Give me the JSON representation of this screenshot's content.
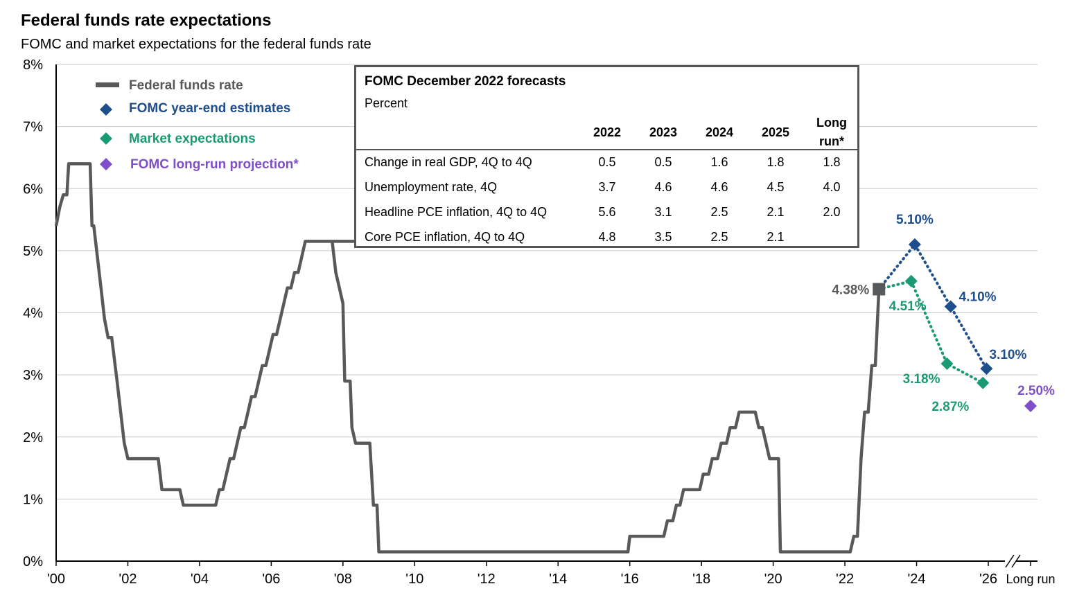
{
  "title": "Federal funds rate expectations",
  "subtitle": "FOMC and market expectations for the federal funds rate",
  "legend": [
    {
      "label": "Federal funds rate",
      "color": "#58595b",
      "symbol": "line"
    },
    {
      "label": "FOMC  year-end estimates",
      "color": "#1f4e8c",
      "symbol": "diamond"
    },
    {
      "label": "Market expectations",
      "color": "#1a9a72",
      "symbol": "diamond"
    },
    {
      "label": "FOMC  long-run  projection*",
      "color": "#7f4fc9",
      "symbol": "diamond"
    }
  ],
  "forecast_table": {
    "title": "FOMC December 2022 forecasts",
    "subtitle": "Percent",
    "columns": [
      "2022",
      "2023",
      "2024",
      "2025",
      "Long",
      "run*"
    ],
    "rows": [
      {
        "label": "Change in real GDP, 4Q to 4Q",
        "values": [
          "0.5",
          "0.5",
          "1.6",
          "1.8",
          "1.8"
        ]
      },
      {
        "label": "Unemployment rate, 4Q",
        "values": [
          "3.7",
          "4.6",
          "4.6",
          "4.5",
          "4.0"
        ]
      },
      {
        "label": "Headline PCE inflation, 4Q to 4Q",
        "values": [
          "5.6",
          "3.1",
          "2.5",
          "2.1",
          "2.0"
        ]
      },
      {
        "label": "Core PCE inflation, 4Q to 4Q",
        "values": [
          "4.8",
          "3.5",
          "2.5",
          "2.1",
          ""
        ]
      }
    ]
  },
  "chart_data": {
    "type": "line",
    "ylim": [
      0,
      8
    ],
    "xlim": [
      2000,
      2026
    ],
    "y_ticks": [
      "0%",
      "1%",
      "2%",
      "3%",
      "4%",
      "5%",
      "6%",
      "7%",
      "8%"
    ],
    "x_ticks": [
      {
        "year": 2000,
        "label": "'00"
      },
      {
        "year": 2002,
        "label": "'02"
      },
      {
        "year": 2004,
        "label": "'04"
      },
      {
        "year": 2006,
        "label": "'06"
      },
      {
        "year": 2008,
        "label": "'08"
      },
      {
        "year": 2010,
        "label": "'10"
      },
      {
        "year": 2012,
        "label": "'12"
      },
      {
        "year": 2014,
        "label": "'14"
      },
      {
        "year": 2016,
        "label": "'16"
      },
      {
        "year": 2018,
        "label": "'18"
      },
      {
        "year": 2020,
        "label": "'20"
      },
      {
        "year": 2022,
        "label": "'22"
      },
      {
        "year": 2024,
        "label": "'24"
      },
      {
        "year": 2026,
        "label": "'26"
      }
    ],
    "long_run_label": "Long run",
    "grid": true,
    "series": [
      {
        "name": "Federal funds rate",
        "color": "#58595b",
        "points": [
          [
            2000.0,
            5.4
          ],
          [
            2000.1,
            5.7
          ],
          [
            2000.2,
            5.9
          ],
          [
            2000.3,
            5.9
          ],
          [
            2000.35,
            6.4
          ],
          [
            2000.95,
            6.4
          ],
          [
            2001.0,
            5.4
          ],
          [
            2001.05,
            5.4
          ],
          [
            2001.15,
            4.9
          ],
          [
            2001.25,
            4.4
          ],
          [
            2001.35,
            3.9
          ],
          [
            2001.45,
            3.6
          ],
          [
            2001.55,
            3.6
          ],
          [
            2001.7,
            2.9
          ],
          [
            2001.8,
            2.4
          ],
          [
            2001.9,
            1.9
          ],
          [
            2002.0,
            1.65
          ],
          [
            2002.85,
            1.65
          ],
          [
            2002.95,
            1.15
          ],
          [
            2003.45,
            1.15
          ],
          [
            2003.55,
            0.9
          ],
          [
            2004.45,
            0.9
          ],
          [
            2004.55,
            1.15
          ],
          [
            2004.65,
            1.15
          ],
          [
            2004.75,
            1.4
          ],
          [
            2004.85,
            1.65
          ],
          [
            2004.95,
            1.65
          ],
          [
            2005.05,
            1.9
          ],
          [
            2005.15,
            2.15
          ],
          [
            2005.25,
            2.15
          ],
          [
            2005.35,
            2.4
          ],
          [
            2005.45,
            2.65
          ],
          [
            2005.55,
            2.65
          ],
          [
            2005.65,
            2.9
          ],
          [
            2005.75,
            3.15
          ],
          [
            2005.85,
            3.15
          ],
          [
            2005.95,
            3.4
          ],
          [
            2006.05,
            3.65
          ],
          [
            2006.15,
            3.65
          ],
          [
            2006.25,
            3.9
          ],
          [
            2006.35,
            4.15
          ],
          [
            2006.45,
            4.4
          ],
          [
            2006.55,
            4.4
          ],
          [
            2006.65,
            4.65
          ],
          [
            2006.75,
            4.65
          ],
          [
            2006.85,
            4.9
          ],
          [
            2006.95,
            5.15
          ],
          [
            2008.6,
            5.15
          ],
          [
            2007.7,
            5.15
          ],
          [
            2007.8,
            4.65
          ],
          [
            2007.9,
            4.4
          ],
          [
            2008.0,
            4.15
          ],
          [
            2008.05,
            2.9
          ],
          [
            2008.2,
            2.9
          ],
          [
            2008.25,
            2.15
          ],
          [
            2008.35,
            1.9
          ],
          [
            2008.75,
            1.9
          ],
          [
            2008.85,
            0.9
          ],
          [
            2008.95,
            0.9
          ],
          [
            2009.0,
            0.15
          ],
          [
            2015.95,
            0.15
          ],
          [
            2016.0,
            0.4
          ],
          [
            2016.95,
            0.4
          ],
          [
            2017.05,
            0.65
          ],
          [
            2017.2,
            0.65
          ],
          [
            2017.3,
            0.9
          ],
          [
            2017.4,
            0.9
          ],
          [
            2017.5,
            1.15
          ],
          [
            2017.95,
            1.15
          ],
          [
            2018.05,
            1.4
          ],
          [
            2018.2,
            1.4
          ],
          [
            2018.3,
            1.65
          ],
          [
            2018.45,
            1.65
          ],
          [
            2018.55,
            1.9
          ],
          [
            2018.7,
            1.9
          ],
          [
            2018.8,
            2.15
          ],
          [
            2018.95,
            2.15
          ],
          [
            2019.05,
            2.4
          ],
          [
            2019.5,
            2.4
          ],
          [
            2019.6,
            2.15
          ],
          [
            2019.7,
            2.15
          ],
          [
            2019.8,
            1.9
          ],
          [
            2019.9,
            1.65
          ],
          [
            2020.15,
            1.65
          ],
          [
            2020.2,
            0.15
          ],
          [
            2022.15,
            0.15
          ],
          [
            2022.25,
            0.4
          ],
          [
            2022.35,
            0.4
          ],
          [
            2022.45,
            1.65
          ],
          [
            2022.55,
            2.4
          ],
          [
            2022.65,
            2.4
          ],
          [
            2022.75,
            3.15
          ],
          [
            2022.85,
            3.15
          ],
          [
            2022.95,
            4.38
          ]
        ]
      },
      {
        "name": "FOMC year-end estimates",
        "color": "#1f4e8c",
        "points": [
          [
            2022.95,
            4.38
          ],
          [
            2023.95,
            5.1
          ],
          [
            2024.95,
            4.1
          ],
          [
            2025.95,
            3.1
          ]
        ],
        "labels": [
          "",
          "5.10%",
          "4.10%",
          "3.10%"
        ]
      },
      {
        "name": "Market expectations",
        "color": "#1a9a72",
        "points": [
          [
            2022.95,
            4.38
          ],
          [
            2023.85,
            4.51
          ],
          [
            2024.85,
            3.18
          ],
          [
            2025.85,
            2.87
          ]
        ],
        "labels": [
          "",
          "4.51%",
          "3.18%",
          "2.87%"
        ]
      },
      {
        "name": "FOMC long-run projection*",
        "color": "#7f4fc9",
        "points": [
          [
            "Long run",
            2.5
          ]
        ],
        "labels": [
          "2.50%"
        ]
      }
    ],
    "current_point": {
      "x": 2022.95,
      "y": 4.38,
      "label": "4.38%",
      "color": "#58595b"
    }
  }
}
